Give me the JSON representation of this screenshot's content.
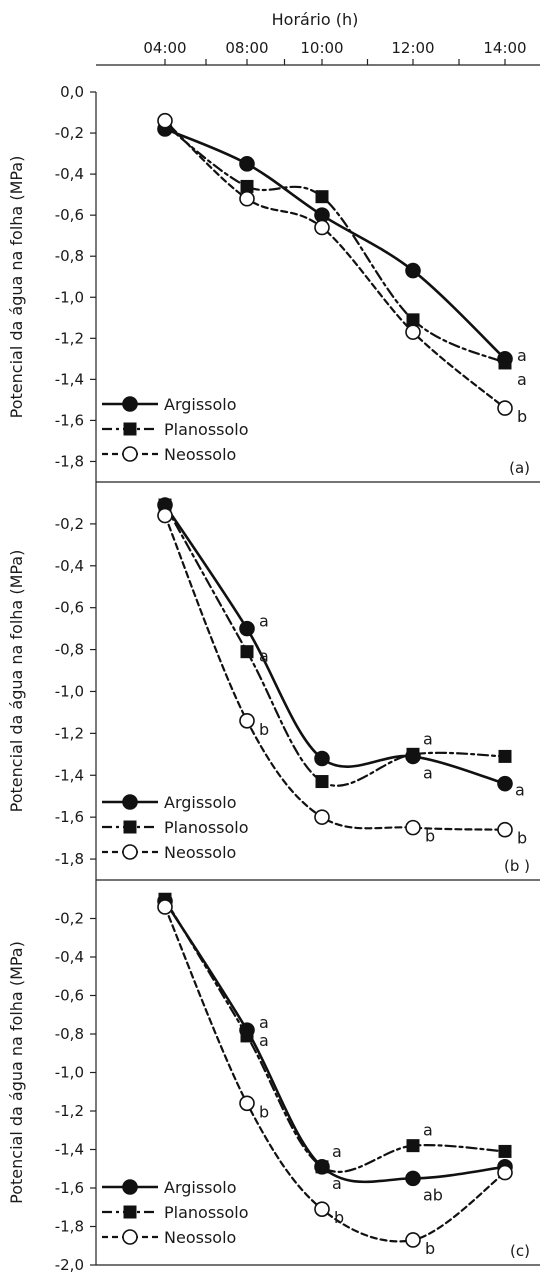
{
  "chart_data": {
    "type": "line",
    "x_axis": {
      "label": "Horário (h)",
      "ticks": [
        "04:00",
        "08:00",
        "10:00",
        "12:00",
        "14:00"
      ]
    },
    "y_axis_label": "Potencial da água na folha (MPa)",
    "legend": [
      "Argissolo",
      "Planossolo",
      "Neossolo"
    ],
    "panels": [
      {
        "tag": "(a)",
        "ylim": [
          -1.9,
          0.0
        ],
        "y_ticks": [
          "0,0",
          "-0,2",
          "-0,4",
          "-0,6",
          "-0,8",
          "-1,0",
          "-1,2",
          "-1,4",
          "-1,6",
          "-1,8"
        ],
        "series": [
          {
            "name": "Argissolo",
            "values": [
              -0.18,
              -0.35,
              -0.6,
              -0.87,
              -1.3
            ]
          },
          {
            "name": "Planossolo",
            "values": [
              -0.16,
              -0.46,
              -0.51,
              -1.11,
              -1.32
            ]
          },
          {
            "name": "Neossolo",
            "values": [
              -0.14,
              -0.52,
              -0.66,
              -1.17,
              -1.54
            ]
          }
        ],
        "annotations": [
          {
            "text": "a",
            "series": "Argissolo",
            "point": 4
          },
          {
            "text": "a",
            "series": "Planossolo",
            "point": 4
          },
          {
            "text": "b",
            "series": "Neossolo",
            "point": 4
          }
        ]
      },
      {
        "tag": "(b )",
        "ylim": [
          -1.9,
          0.0
        ],
        "y_ticks": [
          "-0,2",
          "-0,4",
          "-0,6",
          "-0,8",
          "-1,0",
          "-1,2",
          "-1,4",
          "-1,6",
          "-1,8"
        ],
        "series": [
          {
            "name": "Argissolo",
            "values": [
              -0.11,
              -0.7,
              -1.32,
              -1.31,
              -1.44
            ]
          },
          {
            "name": "Planossolo",
            "values": [
              -0.11,
              -0.81,
              -1.43,
              -1.3,
              -1.31
            ]
          },
          {
            "name": "Neossolo",
            "values": [
              -0.16,
              -1.14,
              -1.6,
              -1.65,
              -1.66
            ]
          }
        ],
        "annotations": [
          {
            "text": "a",
            "series": "Argissolo",
            "point": 1
          },
          {
            "text": "a",
            "series": "Planossolo",
            "point": 1
          },
          {
            "text": "b",
            "series": "Neossolo",
            "point": 1
          },
          {
            "text": "a",
            "series": "Planossolo",
            "point": 3
          },
          {
            "text": "a",
            "series": "Argissolo",
            "point": 3
          },
          {
            "text": "b",
            "series": "Neossolo",
            "point": 3
          },
          {
            "text": "a",
            "series": "Argissolo",
            "point": 4
          },
          {
            "text": "b",
            "series": "Neossolo",
            "point": 4
          }
        ]
      },
      {
        "tag": "(c)",
        "ylim": [
          -2.0,
          0.0
        ],
        "y_ticks": [
          "-0,2",
          "-0,4",
          "-0,6",
          "-0,8",
          "-1,0",
          "-1,2",
          "-1,4",
          "-1,6",
          "-1,8",
          "-2,0"
        ],
        "series": [
          {
            "name": "Argissolo",
            "values": [
              -0.11,
              -0.78,
              -1.49,
              -1.55,
              -1.49
            ]
          },
          {
            "name": "Planossolo",
            "values": [
              -0.1,
              -0.81,
              -1.49,
              -1.38,
              -1.41
            ]
          },
          {
            "name": "Neossolo",
            "values": [
              -0.14,
              -1.16,
              -1.71,
              -1.87,
              -1.52
            ]
          }
        ],
        "annotations": [
          {
            "text": "a",
            "series": "Argissolo",
            "point": 1
          },
          {
            "text": "a",
            "series": "Planossolo",
            "point": 1
          },
          {
            "text": "b",
            "series": "Neossolo",
            "point": 1
          },
          {
            "text": "a",
            "series": "Planossolo",
            "point": 2
          },
          {
            "text": "a",
            "series": "Argissolo",
            "point": 2
          },
          {
            "text": "b",
            "series": "Neossolo",
            "point": 2
          },
          {
            "text": "a",
            "series": "Planossolo",
            "point": 3
          },
          {
            "text": "ab",
            "series": "Argissolo",
            "point": 3
          },
          {
            "text": "b",
            "series": "Neossolo",
            "point": 3
          }
        ]
      }
    ]
  }
}
